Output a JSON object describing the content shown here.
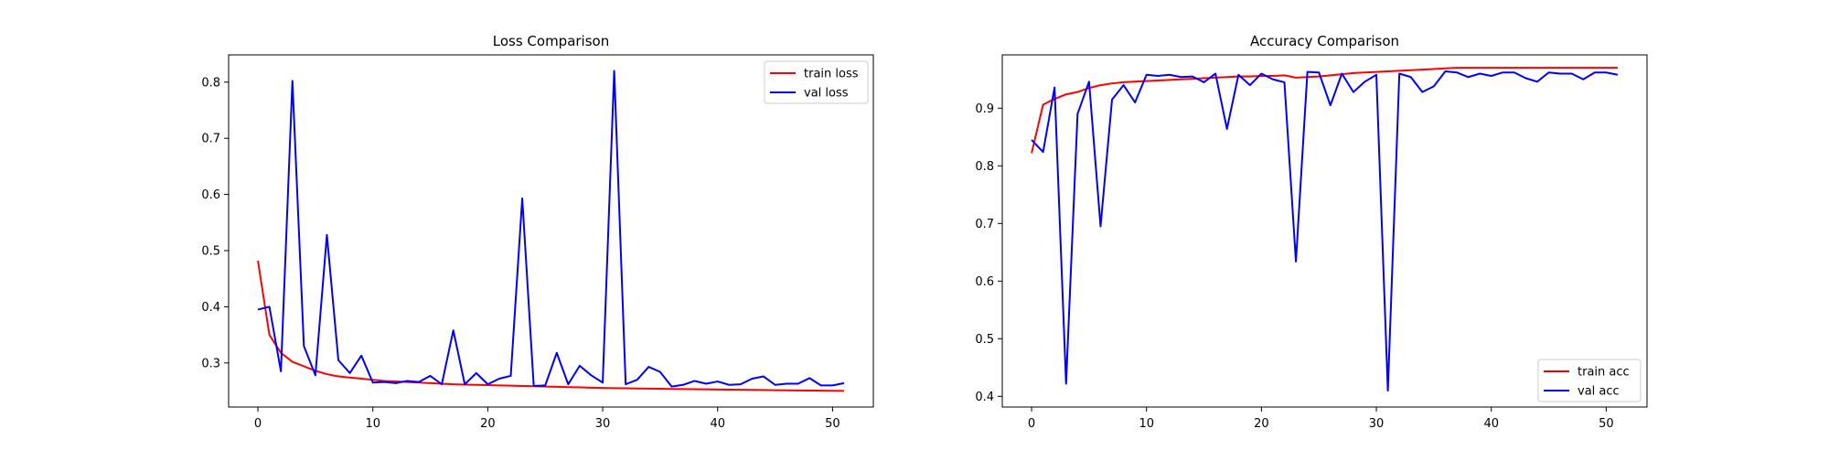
{
  "chart_data": [
    {
      "type": "line",
      "title": "Loss Comparison",
      "xlabel": "",
      "ylabel": "",
      "xlim": [
        -2.55,
        53.55
      ],
      "ylim": [
        0.2215,
        0.8485
      ],
      "xticks": [
        0,
        10,
        20,
        30,
        40,
        50
      ],
      "yticks": [
        0.3,
        0.4,
        0.5,
        0.6,
        0.7,
        0.8
      ],
      "legend_position": "top-right",
      "grid": false,
      "series": [
        {
          "name": "train loss",
          "color": "#ff0000",
          "x": [
            0,
            1,
            2,
            3,
            4,
            5,
            6,
            7,
            8,
            9,
            10,
            11,
            12,
            13,
            14,
            15,
            16,
            17,
            18,
            19,
            20,
            21,
            22,
            23,
            24,
            25,
            26,
            27,
            28,
            29,
            30,
            31,
            32,
            33,
            34,
            35,
            36,
            37,
            38,
            39,
            40,
            41,
            42,
            43,
            44,
            45,
            46,
            47,
            48,
            49,
            50,
            51
          ],
          "y": [
            0.482,
            0.35,
            0.318,
            0.302,
            0.294,
            0.286,
            0.28,
            0.276,
            0.274,
            0.272,
            0.27,
            0.268,
            0.267,
            0.266,
            0.265,
            0.264,
            0.263,
            0.262,
            0.2615,
            0.261,
            0.2605,
            0.26,
            0.2595,
            0.259,
            0.2585,
            0.258,
            0.2575,
            0.257,
            0.2565,
            0.256,
            0.2555,
            0.255,
            0.2548,
            0.2545,
            0.2542,
            0.254,
            0.2537,
            0.2535,
            0.2532,
            0.253,
            0.2527,
            0.2525,
            0.2522,
            0.252,
            0.2518,
            0.2515,
            0.2513,
            0.2511,
            0.2509,
            0.2507,
            0.2505,
            0.2503
          ]
        },
        {
          "name": "val loss",
          "color": "#0000ff",
          "x": [
            0,
            1,
            2,
            3,
            4,
            5,
            6,
            7,
            8,
            9,
            10,
            11,
            12,
            13,
            14,
            15,
            16,
            17,
            18,
            19,
            20,
            21,
            22,
            23,
            24,
            25,
            26,
            27,
            28,
            29,
            30,
            31,
            32,
            33,
            34,
            35,
            36,
            37,
            38,
            39,
            40,
            41,
            42,
            43,
            44,
            45,
            46,
            47,
            48,
            49,
            50,
            51
          ],
          "y": [
            0.395,
            0.4,
            0.285,
            0.802,
            0.33,
            0.278,
            0.528,
            0.305,
            0.282,
            0.313,
            0.265,
            0.266,
            0.264,
            0.268,
            0.266,
            0.277,
            0.262,
            0.358,
            0.262,
            0.282,
            0.262,
            0.272,
            0.277,
            0.593,
            0.259,
            0.26,
            0.318,
            0.262,
            0.295,
            0.278,
            0.265,
            0.82,
            0.262,
            0.27,
            0.293,
            0.284,
            0.258,
            0.261,
            0.268,
            0.263,
            0.267,
            0.261,
            0.262,
            0.272,
            0.276,
            0.261,
            0.263,
            0.263,
            0.273,
            0.26,
            0.26,
            0.264
          ]
        }
      ]
    },
    {
      "type": "line",
      "title": "Accuracy Comparison",
      "xlabel": "",
      "ylabel": "",
      "xlim": [
        -2.55,
        53.55
      ],
      "ylim": [
        0.3815,
        0.9925
      ],
      "xticks": [
        0,
        10,
        20,
        30,
        40,
        50
      ],
      "yticks": [
        0.4,
        0.5,
        0.6,
        0.7,
        0.8,
        0.9
      ],
      "legend_position": "bottom-right",
      "grid": false,
      "series": [
        {
          "name": "train acc",
          "color": "#ff0000",
          "x": [
            0,
            1,
            2,
            3,
            4,
            5,
            6,
            7,
            8,
            9,
            10,
            11,
            12,
            13,
            14,
            15,
            16,
            17,
            18,
            19,
            20,
            21,
            22,
            23,
            24,
            25,
            26,
            27,
            28,
            29,
            30,
            31,
            32,
            33,
            34,
            35,
            36,
            37,
            38,
            39,
            40,
            41,
            42,
            43,
            44,
            45,
            46,
            47,
            48,
            49,
            50,
            51
          ],
          "y": [
            0.822,
            0.906,
            0.916,
            0.924,
            0.928,
            0.935,
            0.94,
            0.943,
            0.945,
            0.946,
            0.947,
            0.948,
            0.949,
            0.95,
            0.951,
            0.952,
            0.953,
            0.954,
            0.955,
            0.955,
            0.956,
            0.956,
            0.957,
            0.953,
            0.954,
            0.955,
            0.957,
            0.959,
            0.961,
            0.962,
            0.963,
            0.964,
            0.965,
            0.966,
            0.967,
            0.968,
            0.969,
            0.97,
            0.97,
            0.97,
            0.97,
            0.97,
            0.97,
            0.97,
            0.97,
            0.97,
            0.97,
            0.97,
            0.97,
            0.97,
            0.97,
            0.97
          ]
        },
        {
          "name": "val acc",
          "color": "#0000ff",
          "x": [
            0,
            1,
            2,
            3,
            4,
            5,
            6,
            7,
            8,
            9,
            10,
            11,
            12,
            13,
            14,
            15,
            16,
            17,
            18,
            19,
            20,
            21,
            22,
            23,
            24,
            25,
            26,
            27,
            28,
            29,
            30,
            31,
            32,
            33,
            34,
            35,
            36,
            37,
            38,
            39,
            40,
            41,
            42,
            43,
            44,
            45,
            46,
            47,
            48,
            49,
            50,
            51
          ],
          "y": [
            0.845,
            0.824,
            0.936,
            0.422,
            0.89,
            0.946,
            0.695,
            0.915,
            0.94,
            0.91,
            0.958,
            0.956,
            0.958,
            0.954,
            0.955,
            0.945,
            0.96,
            0.864,
            0.958,
            0.94,
            0.96,
            0.95,
            0.945,
            0.634,
            0.963,
            0.962,
            0.905,
            0.96,
            0.928,
            0.946,
            0.958,
            0.41,
            0.96,
            0.954,
            0.928,
            0.938,
            0.964,
            0.962,
            0.954,
            0.96,
            0.956,
            0.962,
            0.962,
            0.952,
            0.946,
            0.962,
            0.96,
            0.96,
            0.95,
            0.962,
            0.962,
            0.958
          ]
        }
      ]
    }
  ]
}
